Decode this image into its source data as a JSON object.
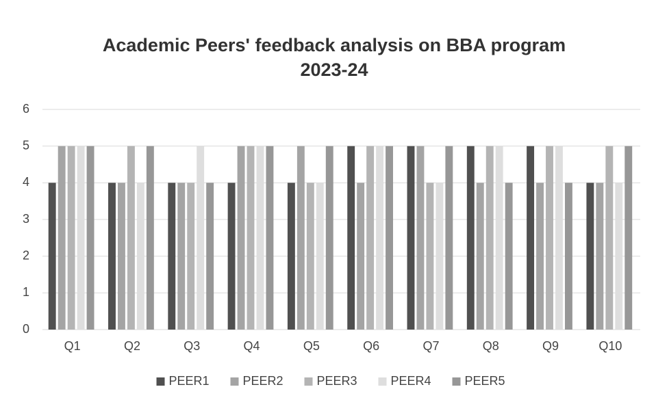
{
  "chart_data": {
    "type": "bar",
    "title": [
      "Academic Peers' feedback analysis on BBA program",
      "2023-24"
    ],
    "categories": [
      "Q1",
      "Q2",
      "Q3",
      "Q4",
      "Q5",
      "Q6",
      "Q7",
      "Q8",
      "Q9",
      "Q10"
    ],
    "series": [
      {
        "name": "PEER1",
        "color": "#505050",
        "values": [
          4,
          4,
          4,
          4,
          4,
          5,
          5,
          5,
          5,
          4
        ]
      },
      {
        "name": "PEER2",
        "color": "#a4a4a4",
        "values": [
          5,
          4,
          4,
          5,
          5,
          4,
          5,
          4,
          4,
          4
        ]
      },
      {
        "name": "PEER3",
        "color": "#b4b4b4",
        "values": [
          5,
          5,
          4,
          5,
          4,
          5,
          4,
          5,
          5,
          5
        ]
      },
      {
        "name": "PEER4",
        "color": "#dedede",
        "values": [
          5,
          4,
          5,
          5,
          4,
          5,
          4,
          5,
          5,
          4
        ]
      },
      {
        "name": "PEER5",
        "color": "#979797",
        "values": [
          5,
          5,
          4,
          5,
          5,
          5,
          5,
          4,
          4,
          5
        ]
      }
    ],
    "ylim": [
      0,
      6
    ],
    "yticks": [
      0,
      1,
      2,
      3,
      4,
      5,
      6
    ],
    "grid": true,
    "legend": "bottom"
  }
}
